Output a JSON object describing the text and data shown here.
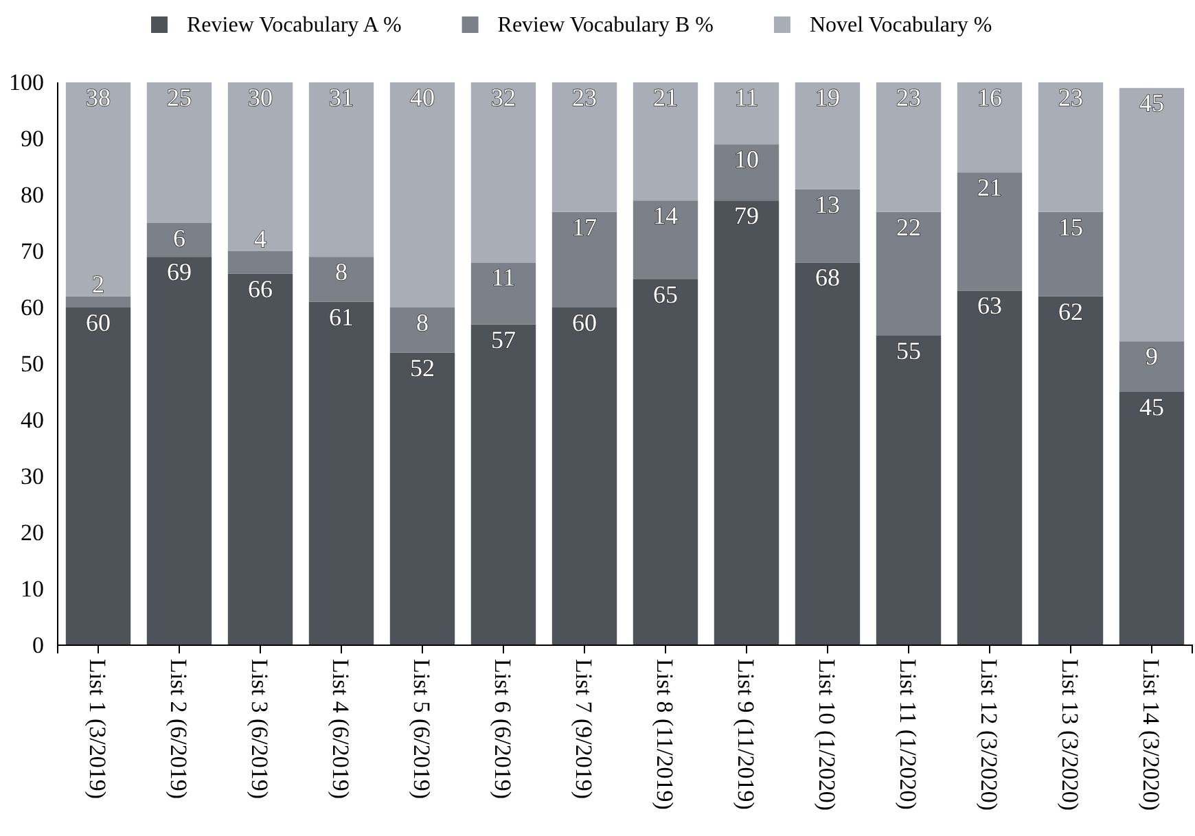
{
  "chart_data": {
    "type": "bar",
    "stacked": true,
    "data_labels": true,
    "legend": "top",
    "grid": false,
    "categories": [
      "List 1 (3/2019)",
      "List 2 (6/2019)",
      "List 3 (6/2019)",
      "List 4 (6/2019)",
      "List 5 (6/2019)",
      "List 6 (6/2019)",
      "List 7 (9/2019)",
      "List 8 (11/2019)",
      "List 9 (11/2019)",
      "List 10 (1/2020)",
      "List 11 (1/2020)",
      "List 12 (3/2020)",
      "List 13 (3/2020)",
      "List 14 (3/2020)"
    ],
    "series": [
      {
        "name": "Review Vocabulary A %",
        "color": "#4e5259",
        "values": [
          60,
          69,
          66,
          61,
          52,
          57,
          60,
          65,
          79,
          68,
          55,
          63,
          62,
          45
        ]
      },
      {
        "name": "Review Vocabulary B %",
        "color": "#7c8088",
        "values": [
          2,
          6,
          4,
          8,
          8,
          11,
          17,
          14,
          10,
          13,
          22,
          21,
          15,
          9
        ]
      },
      {
        "name": "Novel Vocabulary %",
        "color": "#a9adb5",
        "values": [
          38,
          25,
          30,
          31,
          40,
          32,
          23,
          21,
          11,
          19,
          23,
          16,
          23,
          45
        ]
      }
    ],
    "ylim": [
      0,
      100
    ],
    "yticks": [
      0,
      10,
      20,
      30,
      40,
      50,
      60,
      70,
      80,
      90,
      100
    ]
  }
}
